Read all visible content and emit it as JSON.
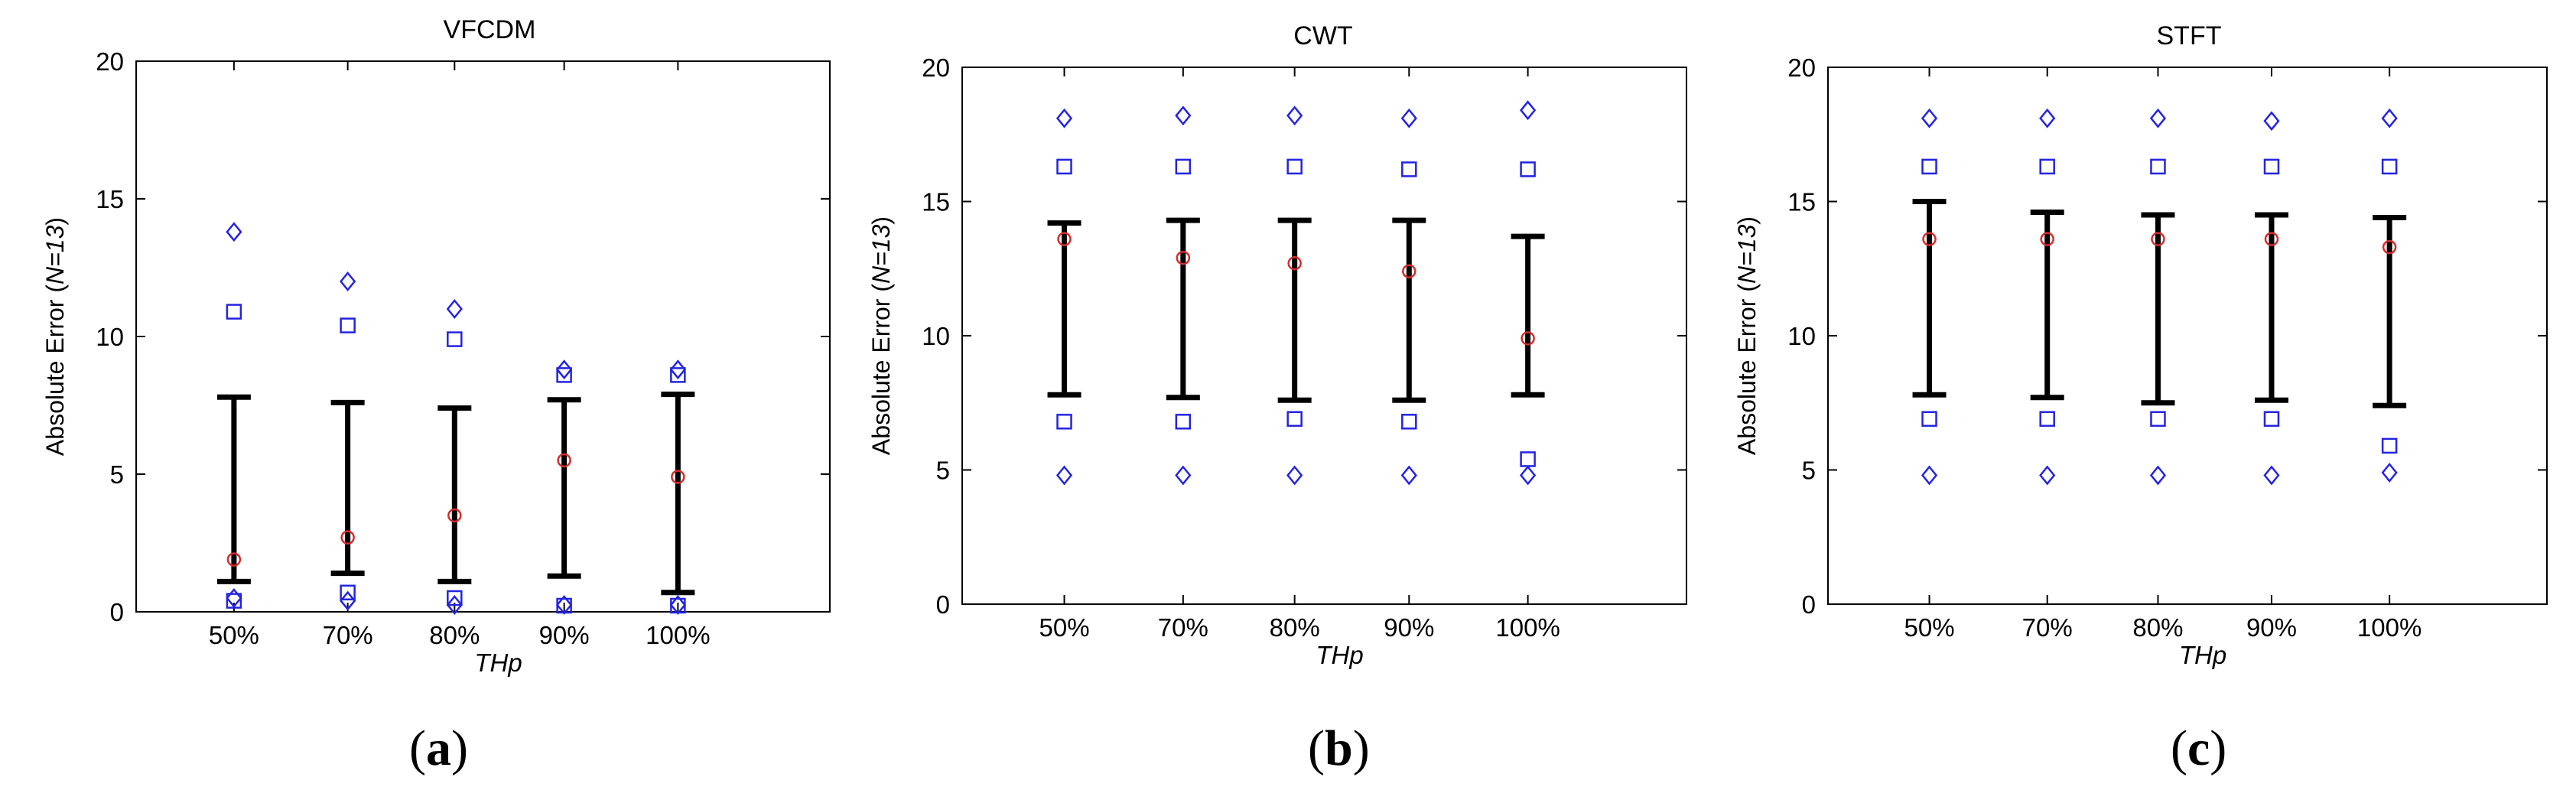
{
  "chart_data": [
    {
      "type": "errorbar",
      "panel_label": "a",
      "title": "VFCDM",
      "xlabel": "THp",
      "ylabel_prefix": "Absolute Error (",
      "ylabel_italic": "N=13",
      "ylabel_suffix": ")",
      "ylim": [
        0,
        20
      ],
      "yticks": [
        "0",
        "5",
        "10",
        "15",
        "20"
      ],
      "categories": [
        "50%",
        "70%",
        "80%",
        "90%",
        "100%"
      ],
      "series": [
        {
          "name": "error bar low",
          "values": [
            1.1,
            1.4,
            1.1,
            1.3,
            0.7
          ]
        },
        {
          "name": "error bar high",
          "values": [
            7.8,
            7.6,
            7.4,
            7.7,
            7.9
          ]
        },
        {
          "name": "mean (circle)",
          "values": [
            1.9,
            2.7,
            3.5,
            5.5,
            4.9
          ]
        },
        {
          "name": "square upper",
          "values": [
            10.9,
            10.4,
            9.9,
            8.6,
            8.6
          ]
        },
        {
          "name": "square lower",
          "values": [
            0.4,
            0.7,
            0.5,
            0.2,
            0.1
          ]
        },
        {
          "name": "diamond upper",
          "values": [
            13.8,
            12.0,
            11.0,
            8.8,
            8.8
          ]
        },
        {
          "name": "diamond lower",
          "values": [
            0.5,
            0.4,
            0.2,
            0.0,
            0.0
          ]
        }
      ]
    },
    {
      "type": "errorbar",
      "panel_label": "b",
      "title": "CWT",
      "xlabel": "THp",
      "ylabel_prefix": "Absolute Error (",
      "ylabel_italic": "N=13",
      "ylabel_suffix": ")",
      "ylim": [
        0,
        20
      ],
      "yticks": [
        "0",
        "5",
        "10",
        "15",
        "20"
      ],
      "categories": [
        "50%",
        "70%",
        "80%",
        "90%",
        "100%"
      ],
      "series": [
        {
          "name": "error bar low",
          "values": [
            7.8,
            7.7,
            7.6,
            7.6,
            7.8
          ]
        },
        {
          "name": "error bar high",
          "values": [
            14.2,
            14.3,
            14.3,
            14.3,
            13.7
          ]
        },
        {
          "name": "mean (circle)",
          "values": [
            13.6,
            12.9,
            12.7,
            12.4,
            9.9
          ]
        },
        {
          "name": "square upper",
          "values": [
            16.3,
            16.3,
            16.3,
            16.2,
            16.2
          ]
        },
        {
          "name": "square lower",
          "values": [
            6.8,
            6.8,
            6.9,
            6.8,
            5.4
          ]
        },
        {
          "name": "diamond upper",
          "values": [
            18.1,
            18.2,
            18.2,
            18.1,
            18.4
          ]
        },
        {
          "name": "diamond lower",
          "values": [
            4.8,
            4.8,
            4.8,
            4.8,
            4.8
          ]
        }
      ]
    },
    {
      "type": "errorbar",
      "panel_label": "c",
      "title": "STFT",
      "xlabel": "THp",
      "ylabel_prefix": "Absolute Error (",
      "ylabel_italic": "N=13",
      "ylabel_suffix": ")",
      "ylim": [
        0,
        20
      ],
      "yticks": [
        "0",
        "5",
        "10",
        "15",
        "20"
      ],
      "categories": [
        "50%",
        "70%",
        "80%",
        "90%",
        "100%"
      ],
      "series": [
        {
          "name": "error bar low",
          "values": [
            7.8,
            7.7,
            7.5,
            7.6,
            7.4
          ]
        },
        {
          "name": "error bar high",
          "values": [
            15.0,
            14.6,
            14.5,
            14.5,
            14.4
          ]
        },
        {
          "name": "mean (circle)",
          "values": [
            13.6,
            13.6,
            13.6,
            13.6,
            13.3
          ]
        },
        {
          "name": "square upper",
          "values": [
            16.3,
            16.3,
            16.3,
            16.3,
            16.3
          ]
        },
        {
          "name": "square lower",
          "values": [
            6.9,
            6.9,
            6.9,
            6.9,
            5.9
          ]
        },
        {
          "name": "diamond upper",
          "values": [
            18.1,
            18.1,
            18.1,
            18.0,
            18.1
          ]
        },
        {
          "name": "diamond lower",
          "values": [
            4.8,
            4.8,
            4.8,
            4.8,
            4.9
          ]
        }
      ]
    }
  ],
  "colors": {
    "axis": "#000000",
    "errorbar": "#000000",
    "mean_marker": "#d62b2b",
    "range_markers": "#2424e0"
  }
}
